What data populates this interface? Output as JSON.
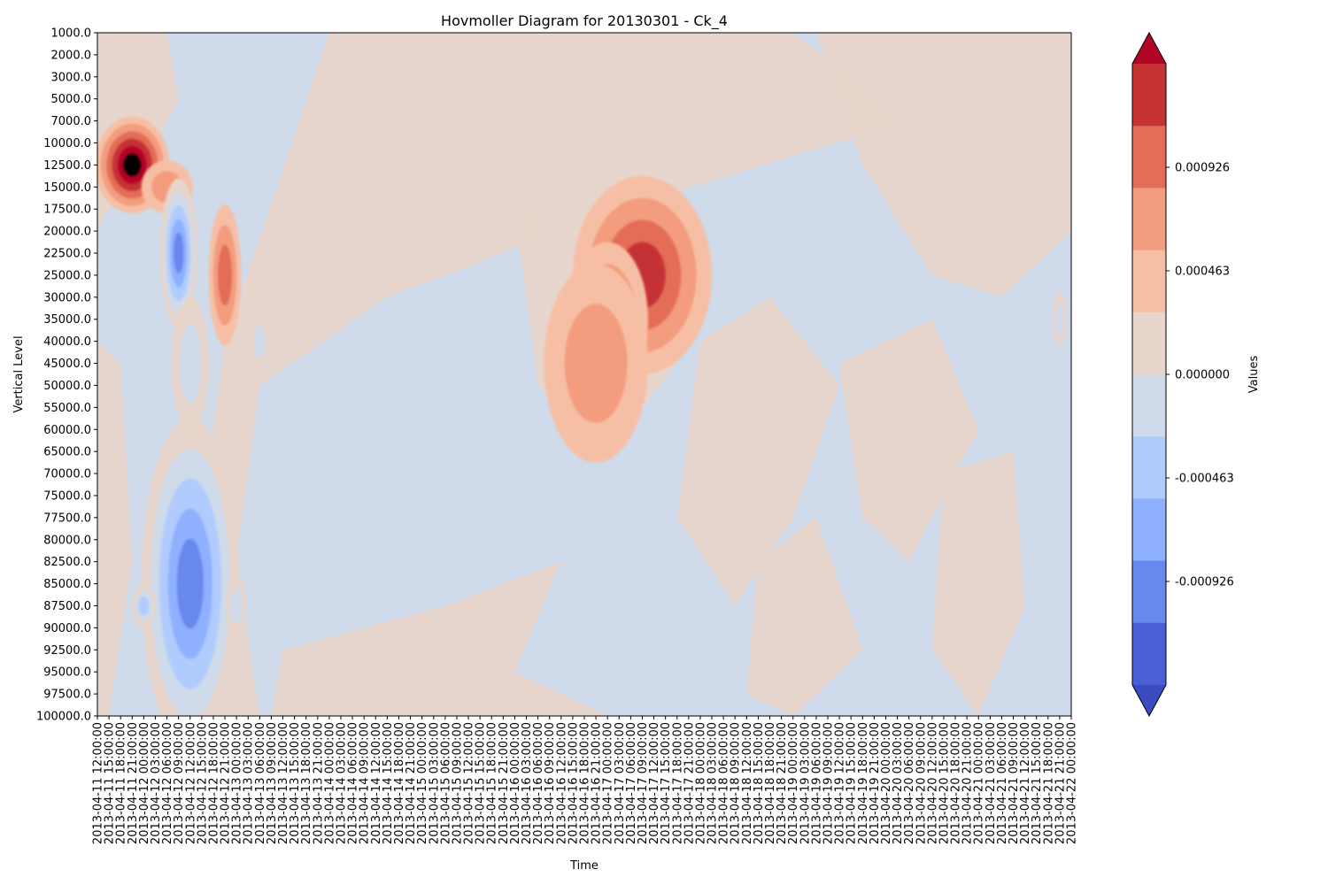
{
  "chart_data": {
    "type": "heatmap",
    "title": "Hovmoller Diagram for 20130301 - Ck_4",
    "xlabel": "Time",
    "ylabel": "Vertical Level",
    "colorbar_label": "Values",
    "colorbar_ticks": [
      "-0.000926",
      "-0.000463",
      "0.000000",
      "0.000463",
      "0.000926"
    ],
    "colorbar_tick_values": [
      -0.000926,
      -0.000463,
      0.0,
      0.000463,
      0.000926
    ],
    "contour_levels": [
      -0.00162,
      -0.001389,
      -0.001157,
      -0.000926,
      -0.000694,
      -0.000463,
      -0.000231,
      0.0,
      0.000231,
      0.000463,
      0.000694,
      0.000926,
      0.001157,
      0.001389
    ],
    "contour_colors": [
      "#3b4cc0",
      "#4a5fd6",
      "#6788ee",
      "#8fb0fe",
      "#b0cbfe",
      "#cfdaea",
      "#e8d6cc",
      "#f6bfa5",
      "#f39c7e",
      "#e36d56",
      "#c53334",
      "#b40426"
    ],
    "y_levels": [
      "1000.0",
      "2000.0",
      "3000.0",
      "5000.0",
      "7000.0",
      "10000.0",
      "12500.0",
      "15000.0",
      "17500.0",
      "20000.0",
      "22500.0",
      "25000.0",
      "30000.0",
      "35000.0",
      "40000.0",
      "45000.0",
      "50000.0",
      "55000.0",
      "60000.0",
      "65000.0",
      "70000.0",
      "75000.0",
      "77500.0",
      "80000.0",
      "82500.0",
      "85000.0",
      "87500.0",
      "90000.0",
      "92500.0",
      "95000.0",
      "97500.0",
      "100000.0"
    ],
    "x_times": [
      "2013-04-11 12:00:00",
      "2013-04-11 15:00:00",
      "2013-04-11 18:00:00",
      "2013-04-11 21:00:00",
      "2013-04-12 00:00:00",
      "2013-04-12 03:00:00",
      "2013-04-12 06:00:00",
      "2013-04-12 09:00:00",
      "2013-04-12 12:00:00",
      "2013-04-12 15:00:00",
      "2013-04-12 18:00:00",
      "2013-04-12 21:00:00",
      "2013-04-13 00:00:00",
      "2013-04-13 03:00:00",
      "2013-04-13 06:00:00",
      "2013-04-13 09:00:00",
      "2013-04-13 12:00:00",
      "2013-04-13 15:00:00",
      "2013-04-13 18:00:00",
      "2013-04-13 21:00:00",
      "2013-04-14 00:00:00",
      "2013-04-14 03:00:00",
      "2013-04-14 06:00:00",
      "2013-04-14 09:00:00",
      "2013-04-14 12:00:00",
      "2013-04-14 15:00:00",
      "2013-04-14 18:00:00",
      "2013-04-14 21:00:00",
      "2013-04-15 00:00:00",
      "2013-04-15 03:00:00",
      "2013-04-15 06:00:00",
      "2013-04-15 09:00:00",
      "2013-04-15 12:00:00",
      "2013-04-15 15:00:00",
      "2013-04-15 18:00:00",
      "2013-04-15 21:00:00",
      "2013-04-16 00:00:00",
      "2013-04-16 03:00:00",
      "2013-04-16 06:00:00",
      "2013-04-16 09:00:00",
      "2013-04-16 12:00:00",
      "2013-04-16 15:00:00",
      "2013-04-16 18:00:00",
      "2013-04-16 21:00:00",
      "2013-04-17 00:00:00",
      "2013-04-17 03:00:00",
      "2013-04-17 06:00:00",
      "2013-04-17 09:00:00",
      "2013-04-17 12:00:00",
      "2013-04-17 15:00:00",
      "2013-04-17 18:00:00",
      "2013-04-17 21:00:00",
      "2013-04-18 00:00:00",
      "2013-04-18 03:00:00",
      "2013-04-18 06:00:00",
      "2013-04-18 09:00:00",
      "2013-04-18 12:00:00",
      "2013-04-18 15:00:00",
      "2013-04-18 18:00:00",
      "2013-04-18 21:00:00",
      "2013-04-19 00:00:00",
      "2013-04-19 03:00:00",
      "2013-04-19 06:00:00",
      "2013-04-19 09:00:00",
      "2013-04-19 12:00:00",
      "2013-04-19 15:00:00",
      "2013-04-19 18:00:00",
      "2013-04-19 21:00:00",
      "2013-04-20 00:00:00",
      "2013-04-20 03:00:00",
      "2013-04-20 06:00:00",
      "2013-04-20 09:00:00",
      "2013-04-20 12:00:00",
      "2013-04-20 15:00:00",
      "2013-04-20 18:00:00",
      "2013-04-20 21:00:00",
      "2013-04-21 00:00:00",
      "2013-04-21 03:00:00",
      "2013-04-21 06:00:00",
      "2013-04-21 09:00:00",
      "2013-04-21 12:00:00",
      "2013-04-21 15:00:00",
      "2013-04-21 18:00:00",
      "2013-04-21 21:00:00",
      "2013-04-22 00:00:00"
    ],
    "features": [
      {
        "t": "2013-04-11 21:00:00",
        "z": "12500.0",
        "value": 0.0014
      },
      {
        "t": "2013-04-12 06:00:00",
        "z": "15000.0",
        "value": 0.0005
      },
      {
        "t": "2013-04-12 09:00:00",
        "z": "22500.0",
        "value": -0.0011
      },
      {
        "t": "2013-04-12 21:00:00",
        "z": "25000.0",
        "value": 0.0007
      },
      {
        "t": "2013-04-12 12:00:00",
        "z": "45000.0",
        "value": -0.0005
      },
      {
        "t": "2013-04-13 06:00:00",
        "z": "40000.0",
        "value": -0.0004
      },
      {
        "t": "2013-04-12 12:00:00",
        "z": "85000.0",
        "value": -0.0011
      },
      {
        "t": "2013-04-12 00:00:00",
        "z": "87500.0",
        "value": -0.0006
      },
      {
        "t": "2013-04-13 00:00:00",
        "z": "87500.0",
        "value": -0.0005
      },
      {
        "t": "2013-04-17 09:00:00",
        "z": "25000.0",
        "value": 0.001
      },
      {
        "t": "2013-04-17 00:00:00",
        "z": "35000.0",
        "value": 0.0008
      },
      {
        "t": "2013-04-16 21:00:00",
        "z": "45000.0",
        "value": 0.0004
      },
      {
        "t": "2013-04-21 21:00:00",
        "z": "35000.0",
        "value": -0.0004
      }
    ],
    "colorbar_extend": "both",
    "grid": false
  }
}
